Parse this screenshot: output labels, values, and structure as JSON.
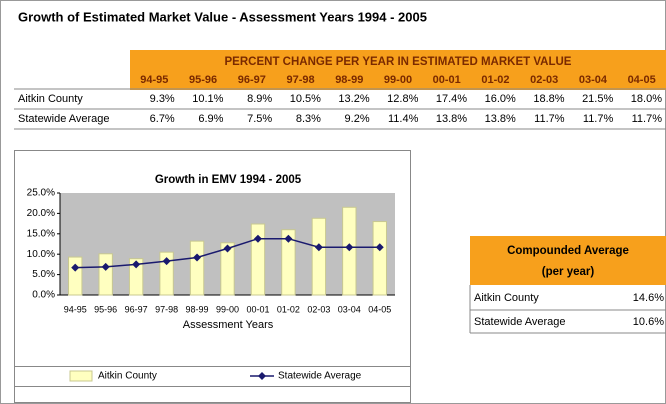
{
  "title": "Growth of Estimated Market Value - Assessment Years 1994 - 2005",
  "table": {
    "header": "PERCENT CHANGE PER YEAR IN ESTIMATED MARKET VALUE",
    "columns": [
      "94-95",
      "95-96",
      "96-97",
      "97-98",
      "98-99",
      "99-00",
      "00-01",
      "01-02",
      "02-03",
      "03-04",
      "04-05"
    ],
    "rows": [
      [
        "Aitkin County",
        "9.3%",
        "10.1%",
        "8.9%",
        "10.5%",
        "13.2%",
        "12.8%",
        "17.4%",
        "16.0%",
        "18.8%",
        "21.5%",
        "18.0%"
      ],
      [
        "Statewide Average",
        "6.7%",
        "6.9%",
        "7.5%",
        "8.3%",
        "9.2%",
        "11.4%",
        "13.8%",
        "13.8%",
        "11.7%",
        "11.7%",
        "11.7%"
      ]
    ]
  },
  "chart_data": {
    "type": "bar",
    "title": "Growth in EMV 1994 - 2005",
    "x_label": "Assessment Years",
    "categories": [
      "94-95",
      "95-96",
      "96-97",
      "97-98",
      "98-99",
      "99-00",
      "00-01",
      "01-02",
      "02-03",
      "03-04",
      "04-05"
    ],
    "series": [
      {
        "name": "Aitkin County",
        "type": "bar",
        "color": "#ffffc0",
        "values": [
          9.3,
          10.1,
          8.9,
          10.5,
          13.2,
          12.8,
          17.4,
          16.0,
          18.8,
          21.5,
          18.0
        ]
      },
      {
        "name": "Statewide Average",
        "type": "line",
        "color": "#1a1a6e",
        "values": [
          6.7,
          6.9,
          7.5,
          8.3,
          9.2,
          11.4,
          13.8,
          13.8,
          11.7,
          11.7,
          11.7
        ]
      }
    ],
    "ylim": [
      0,
      25
    ],
    "yticks": [
      {
        "value": 0,
        "label": "0.0%"
      },
      {
        "value": 5,
        "label": "5.0%"
      },
      {
        "value": 10,
        "label": "10.0%"
      },
      {
        "value": 15,
        "label": "15.0%"
      },
      {
        "value": 20,
        "label": "20.0%"
      },
      {
        "value": 25,
        "label": "25.0%"
      }
    ],
    "legend": "bottom"
  },
  "compounded": {
    "title": "Compounded Average",
    "subtitle": "(per year)",
    "rows": [
      [
        "Aitkin County",
        "14.6%"
      ],
      [
        "Statewide Average",
        "10.6%"
      ]
    ]
  }
}
